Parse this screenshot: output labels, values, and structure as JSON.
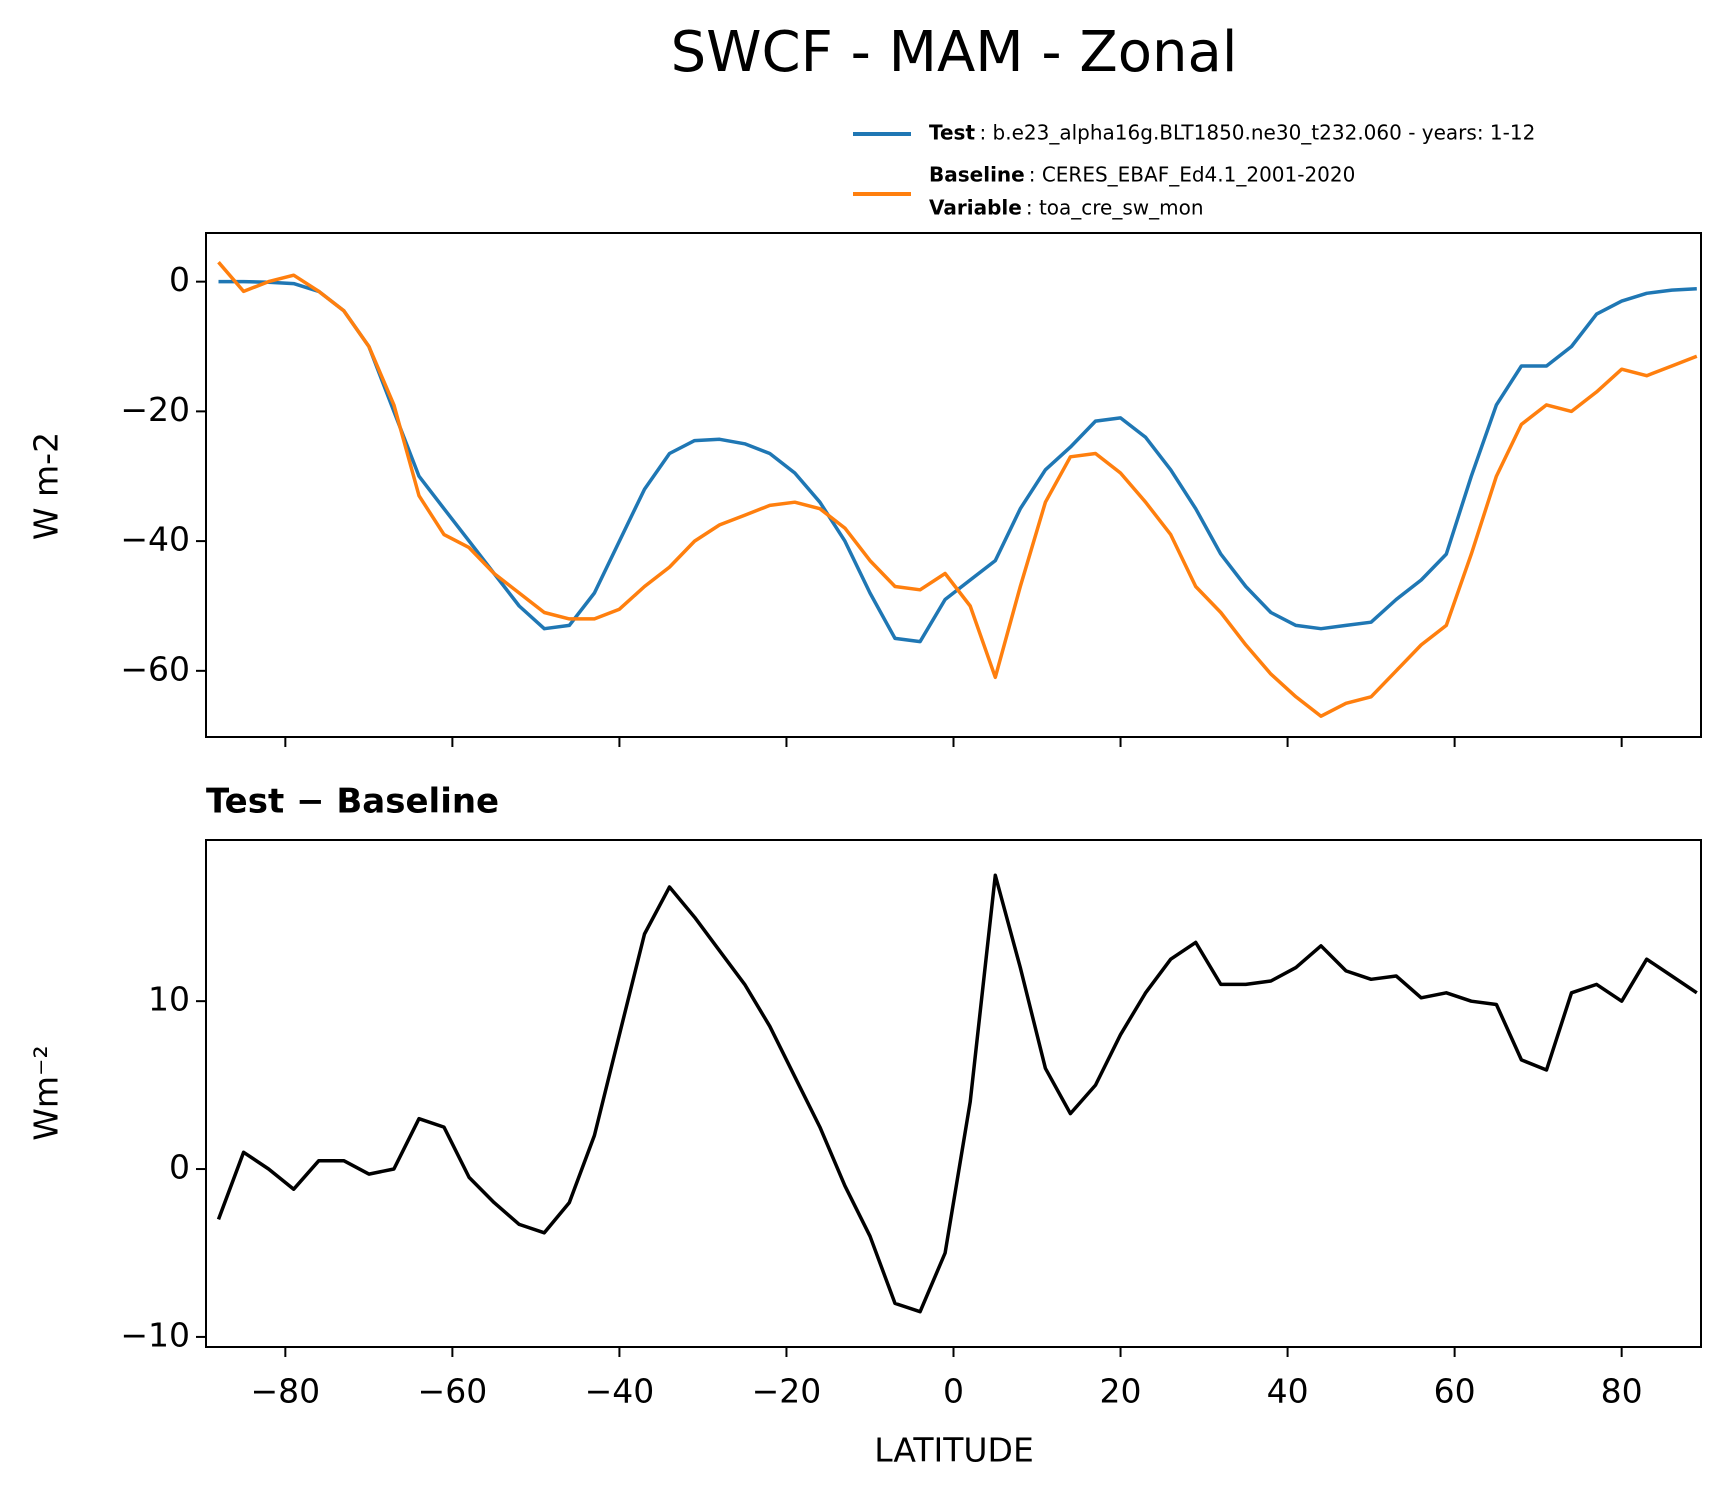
{
  "chart_data": [
    {
      "type": "line",
      "title": "SWCF - MAM - Zonal",
      "ylabel": "W m-2",
      "x": [
        -88,
        -85,
        -82,
        -79,
        -76,
        -73,
        -70,
        -67,
        -64,
        -61,
        -58,
        -55,
        -52,
        -49,
        -46,
        -43,
        -40,
        -37,
        -34,
        -31,
        -28,
        -25,
        -22,
        -19,
        -16,
        -13,
        -10,
        -7,
        -4,
        -1,
        2,
        5,
        8,
        11,
        14,
        17,
        20,
        23,
        26,
        29,
        32,
        35,
        38,
        41,
        44,
        47,
        50,
        53,
        56,
        59,
        62,
        65,
        68,
        71,
        74,
        77,
        80,
        83,
        86,
        89
      ],
      "series": [
        {
          "name": "Test",
          "description": ": b.e23_alpha16g.BLT1850.ne30_t232.060 - years: 1-12",
          "color": "#1f77b4",
          "values": [
            0,
            0,
            -0.1,
            -0.3,
            -1.5,
            -4.5,
            -10,
            -20,
            -30,
            -35,
            -40,
            -45,
            -50,
            -53.5,
            -53,
            -48,
            -40,
            -32,
            -26.5,
            -24.5,
            -24.3,
            -25,
            -26.5,
            -29.5,
            -34,
            -40,
            -48,
            -55,
            -55.5,
            -49,
            -46,
            -43,
            -35,
            -29,
            -25.5,
            -21.5,
            -21,
            -24,
            -29,
            -35,
            -42,
            -47,
            -51,
            -53,
            -53.5,
            -53,
            -52.5,
            -49,
            -46,
            -42,
            -30,
            -19,
            -13,
            -13,
            -10,
            -5,
            -3,
            -1.8,
            -1.3,
            -1.1
          ]
        },
        {
          "name": "Baseline",
          "description": ": CERES_EBAF_Ed4.1_2001-2020",
          "color": "#ff7f0e",
          "values": [
            3,
            -1.5,
            0,
            1,
            -1.5,
            -4.5,
            -10,
            -19,
            -33,
            -39,
            -41,
            -45,
            -48,
            -51,
            -52,
            -52,
            -50.5,
            -47,
            -44,
            -40,
            -37.5,
            -36,
            -34.5,
            -34,
            -35,
            -38,
            -43,
            -47,
            -47.5,
            -45,
            -50,
            -61,
            -47,
            -34,
            -27,
            -26.5,
            -29.5,
            -34,
            -39,
            -47,
            -51,
            -56,
            -60.5,
            -64,
            -67,
            -65,
            -64,
            -60,
            -56,
            -53,
            -42,
            -30,
            -22,
            -19,
            -20,
            -17,
            -13.5,
            -14.5,
            -13,
            -11.5
          ]
        }
      ],
      "variable_label": "Variable",
      "variable": ": toa_cre_sw_mon",
      "xlim": [
        -89.5,
        89.5
      ],
      "xticks": [
        -80,
        -60,
        -40,
        -20,
        0,
        20,
        40,
        60,
        80
      ],
      "ylim": [
        -70.2,
        7.5
      ],
      "yticks": [
        0,
        {
          "value": -20,
          "label": "−20"
        },
        {
          "value": -40,
          "label": "−40"
        },
        {
          "value": -60,
          "label": "−60"
        }
      ]
    },
    {
      "type": "line",
      "title": "Test − Baseline",
      "ylabel": "Wm⁻²",
      "xlabel": "LATITUDE",
      "color": "#000000",
      "x": [
        -88,
        -85,
        -82,
        -79,
        -76,
        -73,
        -70,
        -67,
        -64,
        -61,
        -58,
        -55,
        -52,
        -49,
        -46,
        -43,
        -40,
        -37,
        -34,
        -31,
        -28,
        -25,
        -22,
        -19,
        -16,
        -13,
        -10,
        -7,
        -4,
        -1,
        2,
        5,
        8,
        11,
        14,
        17,
        20,
        23,
        26,
        29,
        32,
        35,
        38,
        41,
        44,
        47,
        50,
        53,
        56,
        59,
        62,
        65,
        68,
        71,
        74,
        77,
        80,
        83,
        86,
        89
      ],
      "values": [
        -3,
        1,
        0,
        -1.2,
        0.5,
        0.5,
        -0.3,
        0,
        3,
        2.5,
        -0.5,
        -2,
        -3.3,
        -3.8,
        -2,
        2,
        8,
        14,
        16.8,
        15,
        13,
        11,
        8.5,
        5.5,
        2.5,
        -1,
        -4,
        -8,
        -8.5,
        -5,
        4,
        17.5,
        12,
        6,
        3.3,
        5,
        8,
        10.5,
        12.5,
        13.5,
        11,
        11,
        11.2,
        12,
        13.3,
        11.8,
        11.3,
        11.5,
        10.2,
        10.5,
        10,
        9.8,
        6.5,
        5.9,
        10.5,
        11,
        10,
        12.5,
        11.5,
        10.5
      ],
      "xlim": [
        -89.5,
        89.5
      ],
      "xticks": [
        {
          "value": -80,
          "label": "−80"
        },
        {
          "value": -60,
          "label": "−60"
        },
        {
          "value": -40,
          "label": "−40"
        },
        {
          "value": -20,
          "label": "−20"
        },
        0,
        20,
        40,
        60,
        80
      ],
      "ylim": [
        -10.6,
        19.6
      ],
      "yticks": [
        {
          "value": -10,
          "label": "−10"
        },
        0,
        10
      ]
    }
  ]
}
